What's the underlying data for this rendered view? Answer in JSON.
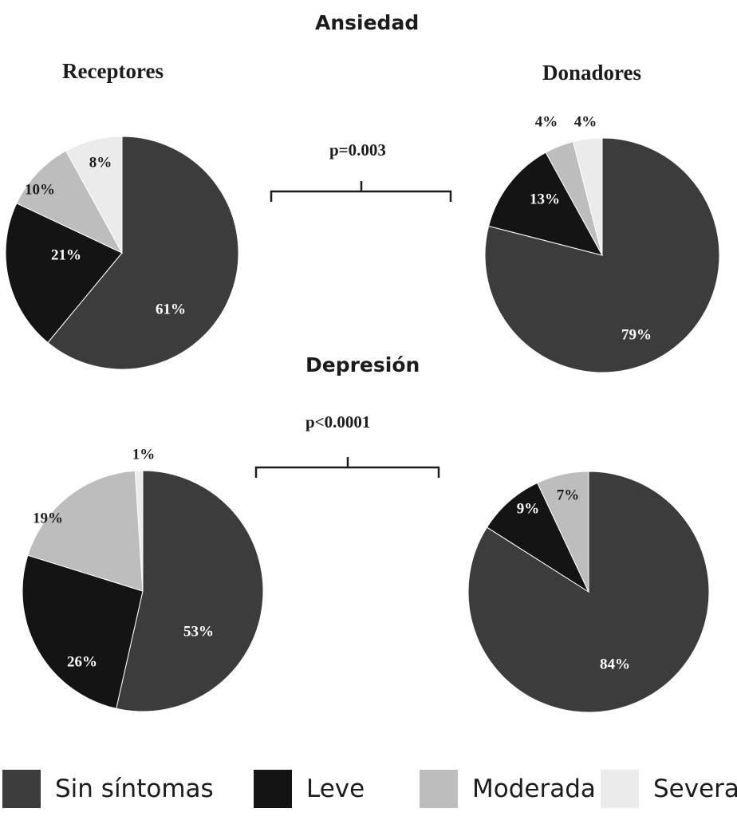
{
  "chart_data": [
    {
      "type": "pie",
      "section": "Ansiedad",
      "group": "Receptores",
      "categories": [
        "Sin síntomas",
        "Leve",
        "Moderada",
        "Severa"
      ],
      "values": [
        61,
        21,
        10,
        8
      ],
      "labels": [
        "61%",
        "21%",
        "10%",
        "8%"
      ]
    },
    {
      "type": "pie",
      "section": "Ansiedad",
      "group": "Donadores",
      "categories": [
        "Sin síntomas",
        "Leve",
        "Moderada",
        "Severa"
      ],
      "values": [
        79,
        13,
        4,
        4
      ],
      "labels": [
        "79%",
        "13%",
        "4%",
        "4%"
      ]
    },
    {
      "type": "pie",
      "section": "Depresión",
      "group": "Receptores",
      "categories": [
        "Sin síntomas",
        "Leve",
        "Moderada",
        "Severa"
      ],
      "values": [
        53,
        26,
        19,
        1
      ],
      "labels": [
        "53%",
        "26%",
        "19%",
        "1%"
      ]
    },
    {
      "type": "pie",
      "section": "Depresión",
      "group": "Donadores",
      "categories": [
        "Sin síntomas",
        "Leve",
        "Moderada"
      ],
      "values": [
        84,
        9,
        7
      ],
      "labels": [
        "84%",
        "9%",
        "7%"
      ]
    }
  ],
  "titles": {
    "anxiety": "Ansiedad",
    "depression": "Depresión",
    "receptores": "Receptores",
    "donadores": "Donadores"
  },
  "pvalues": {
    "anxiety": "p=0.003",
    "depression": "p<0.0001"
  },
  "legend": {
    "placement": "bottom",
    "items": [
      {
        "label": "Sin síntomas",
        "color": "#3c3c3c"
      },
      {
        "label": "Leve",
        "color": "#141414"
      },
      {
        "label": "Moderada",
        "color": "#bdbdbd"
      },
      {
        "label": "Severa",
        "color": "#ebebeb"
      }
    ]
  },
  "colors": {
    "Sin síntomas": "#3c3c3c",
    "Leve": "#141414",
    "Moderada": "#bdbdbd",
    "Severa": "#ebebeb"
  }
}
